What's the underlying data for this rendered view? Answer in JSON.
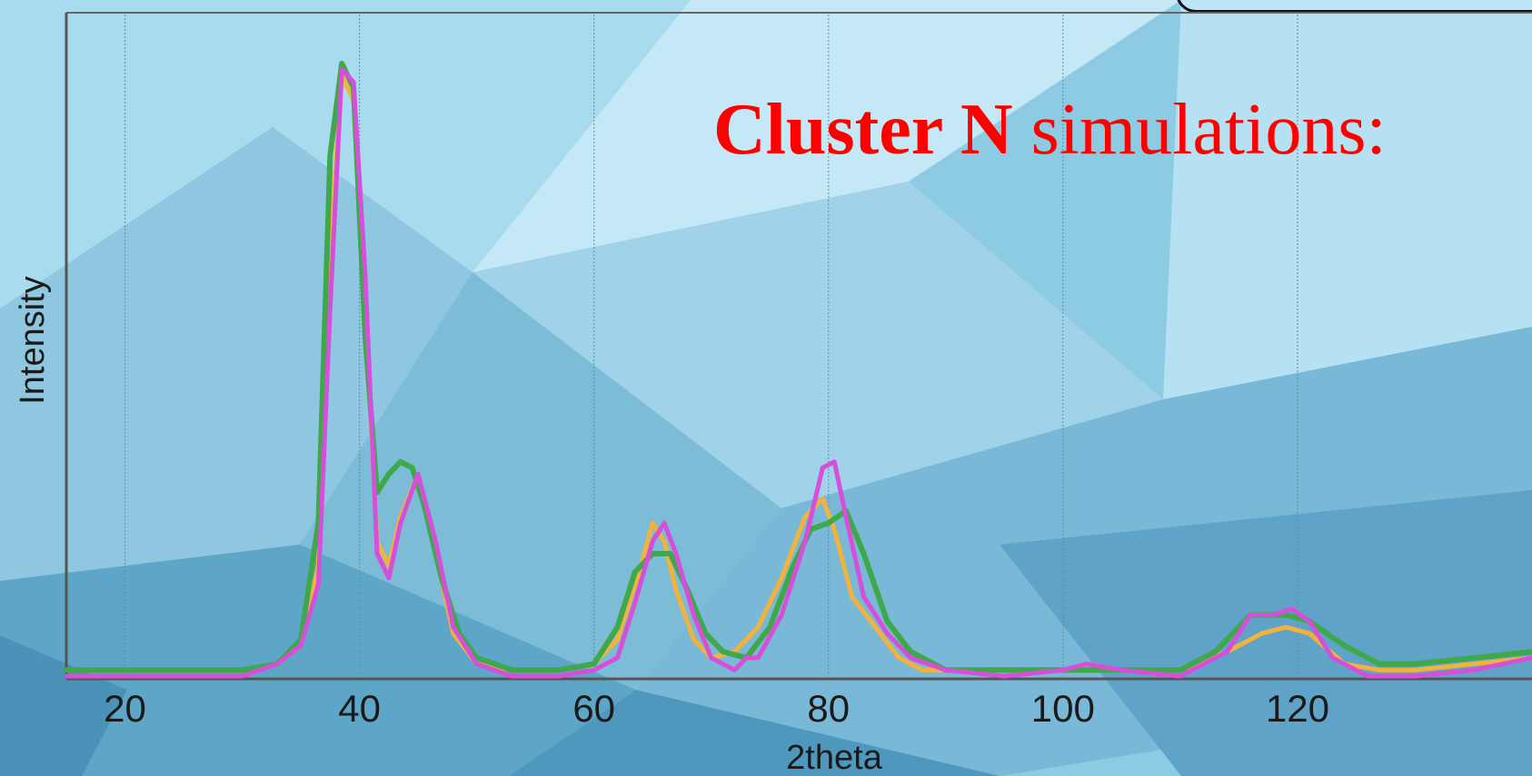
{
  "callout": {
    "bold_text": "Cluster N",
    "normal_text": " simulations:",
    "color": "#ff0000"
  },
  "chart_data": {
    "type": "line",
    "xlabel": "2theta",
    "ylabel": "Intensity",
    "xlim": [
      15,
      140
    ],
    "ylim": [
      0,
      1.0
    ],
    "x_ticks": [
      20,
      40,
      60,
      80,
      100,
      120
    ],
    "grid": "vertical",
    "series": [
      {
        "color": "#f2b33d",
        "x": [
          15,
          30,
          33,
          35,
          36.5,
          37.5,
          38.5,
          39.5,
          40.5,
          41.5,
          42.5,
          43.5,
          45,
          46.5,
          48,
          50,
          53,
          57,
          60,
          62,
          64,
          65,
          66,
          67,
          68.5,
          70,
          72,
          74,
          76,
          78,
          79.5,
          80.5,
          82,
          84,
          86,
          88,
          90,
          95,
          100,
          102,
          105,
          110,
          114,
          117,
          119,
          121,
          124,
          127,
          130,
          135,
          140
        ],
        "y": [
          0.01,
          0.01,
          0.02,
          0.05,
          0.18,
          0.7,
          0.98,
          0.94,
          0.6,
          0.22,
          0.18,
          0.26,
          0.33,
          0.2,
          0.07,
          0.02,
          0.01,
          0.01,
          0.02,
          0.06,
          0.18,
          0.25,
          0.22,
          0.14,
          0.06,
          0.03,
          0.04,
          0.08,
          0.16,
          0.26,
          0.29,
          0.24,
          0.13,
          0.08,
          0.03,
          0.01,
          0.01,
          0.01,
          0.01,
          0.02,
          0.01,
          0.01,
          0.04,
          0.07,
          0.08,
          0.07,
          0.02,
          0.01,
          0.01,
          0.02,
          0.03
        ]
      },
      {
        "color": "#3ea84a",
        "x": [
          15,
          30,
          33,
          35,
          36.5,
          37.5,
          38.5,
          39.5,
          40.5,
          41.5,
          42.5,
          43.5,
          44.5,
          45.5,
          47,
          48.5,
          50,
          53,
          57,
          60,
          62,
          63.5,
          65,
          66.5,
          68,
          69.5,
          71,
          73,
          75,
          77,
          78.5,
          80,
          81.5,
          83,
          85,
          87,
          90,
          95,
          100,
          102,
          105,
          110,
          113,
          116,
          119,
          121,
          124,
          127,
          130,
          135,
          140
        ],
        "y": [
          0.01,
          0.01,
          0.02,
          0.06,
          0.25,
          0.85,
          1.0,
          0.96,
          0.55,
          0.3,
          0.33,
          0.35,
          0.34,
          0.28,
          0.16,
          0.07,
          0.03,
          0.01,
          0.01,
          0.02,
          0.08,
          0.17,
          0.2,
          0.2,
          0.14,
          0.07,
          0.04,
          0.03,
          0.08,
          0.18,
          0.24,
          0.25,
          0.27,
          0.2,
          0.09,
          0.04,
          0.01,
          0.01,
          0.01,
          0.01,
          0.01,
          0.01,
          0.04,
          0.1,
          0.1,
          0.09,
          0.05,
          0.02,
          0.02,
          0.03,
          0.04
        ]
      },
      {
        "color": "#d64fd8",
        "x": [
          15,
          30,
          33,
          35,
          36.5,
          37.5,
          38.5,
          39.5,
          40.5,
          41.5,
          42.5,
          43.5,
          45,
          46.5,
          48,
          50,
          53,
          57,
          60,
          62,
          63.5,
          65,
          66,
          67,
          68.5,
          70,
          72,
          73,
          74,
          76,
          78,
          79.5,
          80.5,
          81.5,
          83,
          85,
          87,
          90,
          95,
          100,
          102,
          105,
          110,
          114,
          116,
          118,
          119.5,
          121,
          123,
          126,
          130,
          135,
          140
        ],
        "y": [
          0.0,
          0.0,
          0.02,
          0.05,
          0.15,
          0.6,
          0.99,
          0.97,
          0.65,
          0.2,
          0.16,
          0.25,
          0.33,
          0.22,
          0.08,
          0.02,
          0.0,
          0.0,
          0.01,
          0.03,
          0.12,
          0.22,
          0.25,
          0.2,
          0.1,
          0.03,
          0.01,
          0.03,
          0.03,
          0.1,
          0.22,
          0.34,
          0.35,
          0.26,
          0.13,
          0.07,
          0.03,
          0.01,
          0.0,
          0.01,
          0.02,
          0.01,
          0.0,
          0.04,
          0.1,
          0.1,
          0.11,
          0.09,
          0.03,
          0.0,
          0.0,
          0.01,
          0.03
        ]
      }
    ]
  }
}
